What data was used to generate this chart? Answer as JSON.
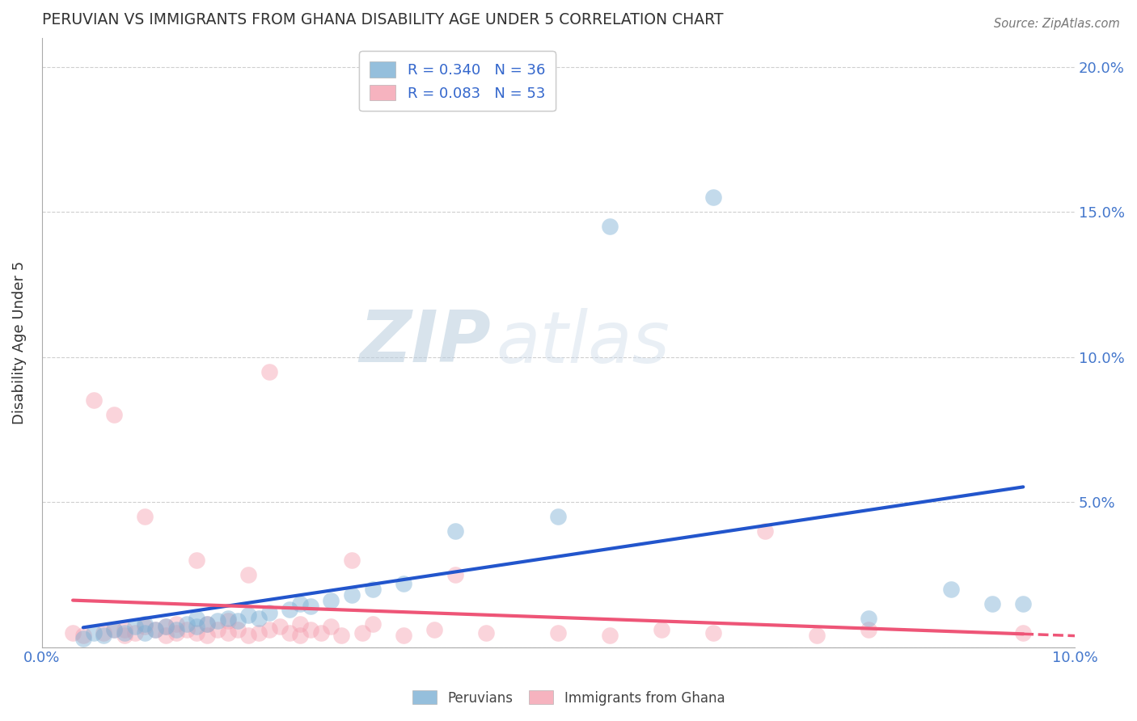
{
  "title": "PERUVIAN VS IMMIGRANTS FROM GHANA DISABILITY AGE UNDER 5 CORRELATION CHART",
  "source": "Source: ZipAtlas.com",
  "ylabel": "Disability Age Under 5",
  "xlim": [
    0.0,
    0.1
  ],
  "ylim": [
    0.0,
    0.21
  ],
  "ytick_vals": [
    0.0,
    0.05,
    0.1,
    0.15,
    0.2
  ],
  "xtick_vals": [
    0.0,
    0.1
  ],
  "blue_R": 0.34,
  "blue_N": 36,
  "pink_R": 0.083,
  "pink_N": 53,
  "blue_color": "#7BAFD4",
  "pink_color": "#F4A0B0",
  "blue_line_color": "#2255CC",
  "pink_line_color": "#EE5577",
  "grid_color": "#BBBBBB",
  "title_color": "#333333",
  "axis_label_color": "#4477CC",
  "legend_R_color": "#3366CC",
  "blue_scatter_x": [
    0.004,
    0.005,
    0.006,
    0.007,
    0.008,
    0.009,
    0.01,
    0.01,
    0.011,
    0.012,
    0.013,
    0.014,
    0.015,
    0.015,
    0.016,
    0.017,
    0.018,
    0.019,
    0.02,
    0.021,
    0.022,
    0.024,
    0.025,
    0.026,
    0.028,
    0.03,
    0.032,
    0.035,
    0.04,
    0.05,
    0.055,
    0.065,
    0.08,
    0.088,
    0.092,
    0.095
  ],
  "blue_scatter_y": [
    0.003,
    0.005,
    0.004,
    0.006,
    0.005,
    0.007,
    0.005,
    0.008,
    0.006,
    0.007,
    0.006,
    0.008,
    0.007,
    0.01,
    0.008,
    0.009,
    0.01,
    0.009,
    0.011,
    0.01,
    0.012,
    0.013,
    0.015,
    0.014,
    0.016,
    0.018,
    0.02,
    0.022,
    0.04,
    0.045,
    0.145,
    0.155,
    0.01,
    0.02,
    0.015,
    0.015
  ],
  "pink_scatter_x": [
    0.003,
    0.004,
    0.005,
    0.006,
    0.007,
    0.007,
    0.008,
    0.008,
    0.009,
    0.01,
    0.01,
    0.011,
    0.012,
    0.012,
    0.013,
    0.013,
    0.014,
    0.015,
    0.015,
    0.016,
    0.016,
    0.017,
    0.018,
    0.018,
    0.019,
    0.02,
    0.02,
    0.021,
    0.022,
    0.022,
    0.023,
    0.024,
    0.025,
    0.025,
    0.026,
    0.027,
    0.028,
    0.029,
    0.03,
    0.031,
    0.032,
    0.035,
    0.038,
    0.04,
    0.043,
    0.05,
    0.055,
    0.06,
    0.065,
    0.07,
    0.075,
    0.08,
    0.095
  ],
  "pink_scatter_y": [
    0.005,
    0.004,
    0.085,
    0.005,
    0.006,
    0.08,
    0.004,
    0.006,
    0.005,
    0.007,
    0.045,
    0.006,
    0.004,
    0.007,
    0.005,
    0.008,
    0.006,
    0.005,
    0.03,
    0.004,
    0.008,
    0.006,
    0.005,
    0.009,
    0.006,
    0.004,
    0.025,
    0.005,
    0.006,
    0.095,
    0.007,
    0.005,
    0.004,
    0.008,
    0.006,
    0.005,
    0.007,
    0.004,
    0.03,
    0.005,
    0.008,
    0.004,
    0.006,
    0.025,
    0.005,
    0.005,
    0.004,
    0.006,
    0.005,
    0.04,
    0.004,
    0.006,
    0.005
  ],
  "watermark_zip": "ZIP",
  "watermark_atlas": "atlas",
  "background_color": "#FFFFFF"
}
